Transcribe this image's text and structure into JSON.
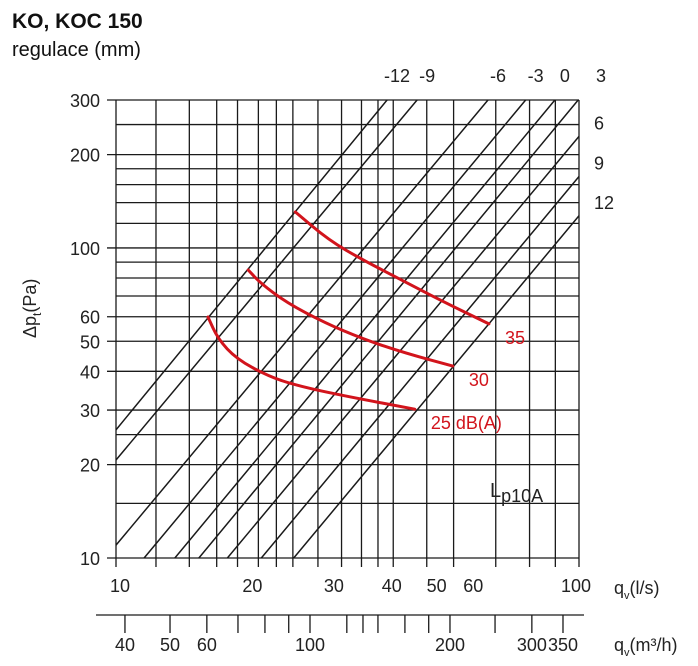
{
  "chart_data": {
    "type": "line",
    "title": "KO, KOC 150",
    "subtitle": "regulace (mm)",
    "scale": "log-log",
    "ylabel": "Δp",
    "ylabel_sub": "t",
    "ylabel_unit": "(Pa)",
    "xlabel": "q",
    "xlabel_sub": "v",
    "xlabel_unit": "(l/s)",
    "xlabel2": "q",
    "xlabel2_sub": "v",
    "xlabel2_unit": "(m³/h)",
    "xlim": [
      10,
      100
    ],
    "ylim": [
      10,
      300
    ],
    "grid": true,
    "x_gridlines": [
      10,
      12.2,
      14.4,
      16.5,
      18.3,
      20.3,
      22.2,
      24.1,
      27.3,
      30.7,
      33.9,
      36.8,
      39.7,
      46.9,
      53.6,
      66.1,
      78.2,
      88.9,
      100
    ],
    "y_gridlines": [
      10,
      15,
      20,
      25,
      30,
      40,
      50,
      60,
      70,
      80,
      90,
      100,
      120,
      140,
      160,
      180,
      200,
      250,
      300
    ],
    "x_tick_labels": [
      "10",
      "20",
      "30",
      "40",
      "50",
      "60",
      "100"
    ],
    "x_tick_values": [
      10,
      20,
      30,
      40,
      50,
      60,
      100
    ],
    "y_tick_labels": [
      "300",
      "200",
      "100",
      "60",
      "50",
      "40",
      "30",
      "20",
      "10"
    ],
    "y_tick_values": [
      300,
      200,
      100,
      60,
      50,
      40,
      30,
      20,
      10
    ],
    "x2_axis": {
      "ticks": [
        40,
        50,
        60,
        70,
        80,
        90,
        100,
        120,
        130,
        140,
        160,
        180,
        200,
        250,
        300,
        350
      ],
      "tick_labels": [
        "40",
        "50",
        "60",
        "100",
        "200",
        "300",
        "350"
      ],
      "tick_label_values": [
        40,
        50,
        60,
        100,
        200,
        300,
        350
      ]
    },
    "regulation_lines": [
      {
        "label": "-12",
        "label_pos": "top",
        "points": [
          [
            10,
            25.9
          ],
          [
            38.5,
            300
          ]
        ]
      },
      {
        "label": "-9",
        "label_pos": "top",
        "points": [
          [
            10,
            20.7
          ],
          [
            44.7,
            300
          ]
        ]
      },
      {
        "label": "-6",
        "label_pos": "top",
        "points": [
          [
            10,
            11.0
          ],
          [
            63.6,
            300
          ]
        ]
      },
      {
        "label": "-3",
        "label_pos": "top",
        "points": [
          [
            11.5,
            10
          ],
          [
            76.7,
            300
          ]
        ]
      },
      {
        "label": "0",
        "label_pos": "top",
        "points": [
          [
            13.4,
            10
          ],
          [
            88.7,
            300
          ]
        ]
      },
      {
        "label": "3",
        "label_pos": "top",
        "points": [
          [
            15.1,
            10
          ],
          [
            99.6,
            300
          ]
        ]
      },
      {
        "label": "6",
        "label_pos": "right",
        "points": [
          [
            17.4,
            10
          ],
          [
            100,
            229
          ]
        ]
      },
      {
        "label": "9",
        "label_pos": "right",
        "points": [
          [
            20.6,
            10
          ],
          [
            100,
            170
          ]
        ]
      },
      {
        "label": "12",
        "label_pos": "right",
        "points": [
          [
            24.2,
            10
          ],
          [
            100,
            127
          ]
        ]
      }
    ],
    "noise_series_title": "L",
    "noise_series_title_sub": "p10A",
    "noise_curves": [
      {
        "name": "25 dB(A)",
        "points": [
          [
            15.8,
            59.9
          ],
          [
            16.6,
            50.9
          ],
          [
            18.2,
            43.9
          ],
          [
            21.3,
            38.6
          ],
          [
            24.7,
            35.9
          ],
          [
            31.2,
            33.3
          ],
          [
            44.2,
            30.2
          ]
        ]
      },
      {
        "name": "30",
        "points": [
          [
            19.3,
            84.9
          ],
          [
            20.5,
            77.1
          ],
          [
            23.4,
            66.5
          ],
          [
            28.3,
            57.3
          ],
          [
            34.1,
            50.9
          ],
          [
            42.1,
            45.8
          ],
          [
            53.4,
            41.6
          ]
        ]
      },
      {
        "name": "35",
        "points": [
          [
            24.4,
            130.6
          ],
          [
            28.8,
            106
          ],
          [
            34.1,
            91.5
          ],
          [
            41.4,
            78.8
          ],
          [
            50.1,
            67.9
          ],
          [
            63.9,
            56.9
          ]
        ]
      }
    ],
    "colors": {
      "grid": "#1a1a1a",
      "noise": "#d2141c"
    }
  }
}
